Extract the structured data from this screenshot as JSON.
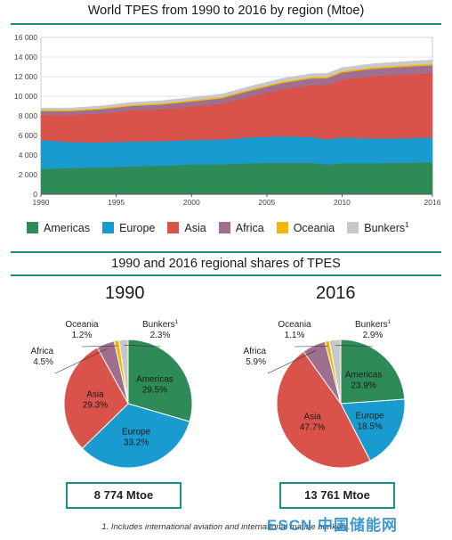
{
  "titles": {
    "top": "World TPES from 1990 to 2016 by region (Mtoe)",
    "bottom": "1990 and 2016 regional shares of TPES"
  },
  "chart_data": [
    {
      "type": "area",
      "stacked": true,
      "title": "World TPES from 1990 to 2016 by region (Mtoe)",
      "x": [
        1990,
        1992,
        1994,
        1996,
        1998,
        2000,
        2002,
        2004,
        2006,
        2008,
        2009,
        2010,
        2012,
        2014,
        2016
      ],
      "x_ticks": [
        "1990",
        "1995",
        "2000",
        "2005",
        "2010",
        "2016"
      ],
      "ylim": [
        0,
        16000
      ],
      "y_ticks": [
        "0",
        "2 000",
        "4 000",
        "6 000",
        "8 000",
        "10 000",
        "12 000",
        "14 000",
        "16 000"
      ],
      "grid": true,
      "legend_position": "bottom",
      "series": [
        {
          "name": "Americas",
          "color": "#2e8b57",
          "values": [
            2600,
            2680,
            2750,
            2850,
            2920,
            3050,
            3050,
            3170,
            3220,
            3200,
            3050,
            3160,
            3160,
            3220,
            3250
          ]
        },
        {
          "name": "Europe",
          "color": "#1a9bd0",
          "values": [
            2950,
            2650,
            2550,
            2550,
            2500,
            2500,
            2550,
            2650,
            2700,
            2650,
            2550,
            2650,
            2550,
            2500,
            2550
          ]
        },
        {
          "name": "Asia",
          "color": "#d9534a",
          "values": [
            2550,
            2750,
            2950,
            3150,
            3250,
            3400,
            3650,
            4200,
            4800,
            5300,
            5550,
            5900,
            6350,
            6500,
            6550
          ]
        },
        {
          "name": "Africa",
          "color": "#a06f8f",
          "values": [
            390,
            410,
            430,
            460,
            490,
            520,
            550,
            590,
            630,
            670,
            690,
            710,
            740,
            780,
            810
          ]
        },
        {
          "name": "Oceania",
          "color": "#f2b705",
          "values": [
            105,
            108,
            110,
            115,
            118,
            120,
            125,
            130,
            133,
            136,
            137,
            140,
            142,
            144,
            150
          ]
        },
        {
          "name": "Bunkers",
          "superscript": "1",
          "color": "#c8c8c8",
          "values": [
            200,
            210,
            230,
            250,
            270,
            290,
            300,
            320,
            340,
            360,
            350,
            360,
            370,
            380,
            400
          ]
        }
      ]
    },
    {
      "type": "pie",
      "title": "1990",
      "total": "8 774 Mtoe",
      "slices": [
        {
          "name": "Americas",
          "value": 29.5,
          "label": "29.5%",
          "color": "#2e8b57"
        },
        {
          "name": "Europe",
          "value": 33.2,
          "label": "33.2%",
          "color": "#1a9bd0"
        },
        {
          "name": "Asia",
          "value": 29.3,
          "label": "29.3%",
          "color": "#d9534a"
        },
        {
          "name": "Africa",
          "value": 4.5,
          "label": "4.5%",
          "color": "#a06f8f"
        },
        {
          "name": "Oceania",
          "value": 1.2,
          "label": "1.2%",
          "color": "#f2b705"
        },
        {
          "name": "Bunkers",
          "superscript": "1",
          "value": 2.3,
          "label": "2.3%",
          "color": "#c8c8c8"
        }
      ]
    },
    {
      "type": "pie",
      "title": "2016",
      "total": "13 761 Mtoe",
      "slices": [
        {
          "name": "Americas",
          "value": 23.9,
          "label": "23.9%",
          "color": "#2e8b57"
        },
        {
          "name": "Europe",
          "value": 18.5,
          "label": "18.5%",
          "color": "#1a9bd0"
        },
        {
          "name": "Asia",
          "value": 47.7,
          "label": "47.7%",
          "color": "#d9534a"
        },
        {
          "name": "Africa",
          "value": 5.9,
          "label": "5.9%",
          "color": "#a06f8f"
        },
        {
          "name": "Oceania",
          "value": 1.1,
          "label": "1.1%",
          "color": "#f2b705"
        },
        {
          "name": "Bunkers",
          "superscript": "1",
          "value": 2.9,
          "label": "2.9%",
          "color": "#c8c8c8"
        }
      ]
    }
  ],
  "footnote": "1. Includes international aviation and international marine bunkers.",
  "watermark": "ESCN 中国储能网"
}
